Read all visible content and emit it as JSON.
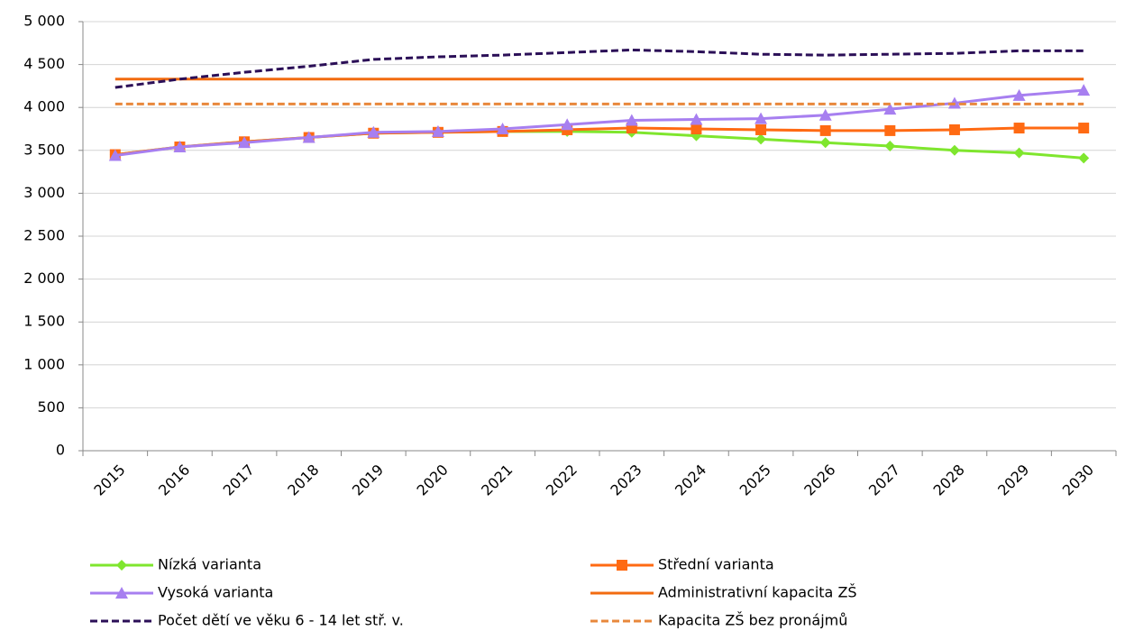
{
  "chart_data": {
    "type": "line",
    "categories": [
      "2015",
      "2016",
      "2017",
      "2018",
      "2019",
      "2020",
      "2021",
      "2022",
      "2023",
      "2024",
      "2025",
      "2026",
      "2027",
      "2028",
      "2029",
      "2030"
    ],
    "series": [
      {
        "name": "Nízká varianta",
        "color": "#7fe62e",
        "marker": "diamond",
        "dash": false,
        "values": [
          3450,
          3540,
          3600,
          3650,
          3700,
          3710,
          3720,
          3720,
          3710,
          3670,
          3630,
          3590,
          3550,
          3500,
          3470,
          3410
        ]
      },
      {
        "name": "Střední varianta",
        "color": "#ff6a13",
        "marker": "square",
        "dash": false,
        "values": [
          3450,
          3540,
          3600,
          3650,
          3700,
          3710,
          3720,
          3740,
          3760,
          3750,
          3740,
          3730,
          3730,
          3740,
          3760,
          3760
        ]
      },
      {
        "name": "Vysoká varianta",
        "color": "#a77ff0",
        "marker": "triangle",
        "dash": false,
        "values": [
          3440,
          3540,
          3590,
          3650,
          3710,
          3720,
          3750,
          3800,
          3850,
          3860,
          3870,
          3910,
          3980,
          4050,
          4140,
          4200
        ]
      },
      {
        "name": "Administrativní kapacita ZŠ",
        "color": "#f26b10",
        "marker": "none",
        "dash": false,
        "values": [
          4330,
          4330,
          4330,
          4330,
          4330,
          4330,
          4330,
          4330,
          4330,
          4330,
          4330,
          4330,
          4330,
          4330,
          4330,
          4330
        ]
      },
      {
        "name": "Počet dětí ve věku 6 - 14 let stř. v.",
        "color": "#2b0f57",
        "marker": "none",
        "dash": true,
        "values": [
          4233,
          4330,
          4410,
          4480,
          4560,
          4590,
          4610,
          4640,
          4670,
          4650,
          4620,
          4610,
          4620,
          4630,
          4660,
          4660
        ]
      },
      {
        "name": "Kapacita ZŠ bez pronájmů",
        "color": "#e8883c",
        "marker": "none",
        "dash": true,
        "values": [
          4040,
          4040,
          4040,
          4040,
          4040,
          4040,
          4040,
          4040,
          4040,
          4040,
          4040,
          4040,
          4040,
          4040,
          4040,
          4040
        ]
      }
    ],
    "ylim": [
      0,
      5000
    ],
    "yticks": [
      0,
      500,
      {
        "value": 1000,
        "label": "1 000"
      },
      {
        "value": 1500,
        "label": "1 500"
      },
      {
        "value": 2000,
        "label": "2 000"
      },
      {
        "value": 2500,
        "label": "2 500"
      },
      {
        "value": 3000,
        "label": "3 000"
      },
      {
        "value": 3500,
        "label": "3 500"
      },
      {
        "value": 4000,
        "label": "4 000"
      },
      {
        "value": 4500,
        "label": "4 500"
      },
      {
        "value": 5000,
        "label": "5 000"
      }
    ],
    "grid": true
  }
}
